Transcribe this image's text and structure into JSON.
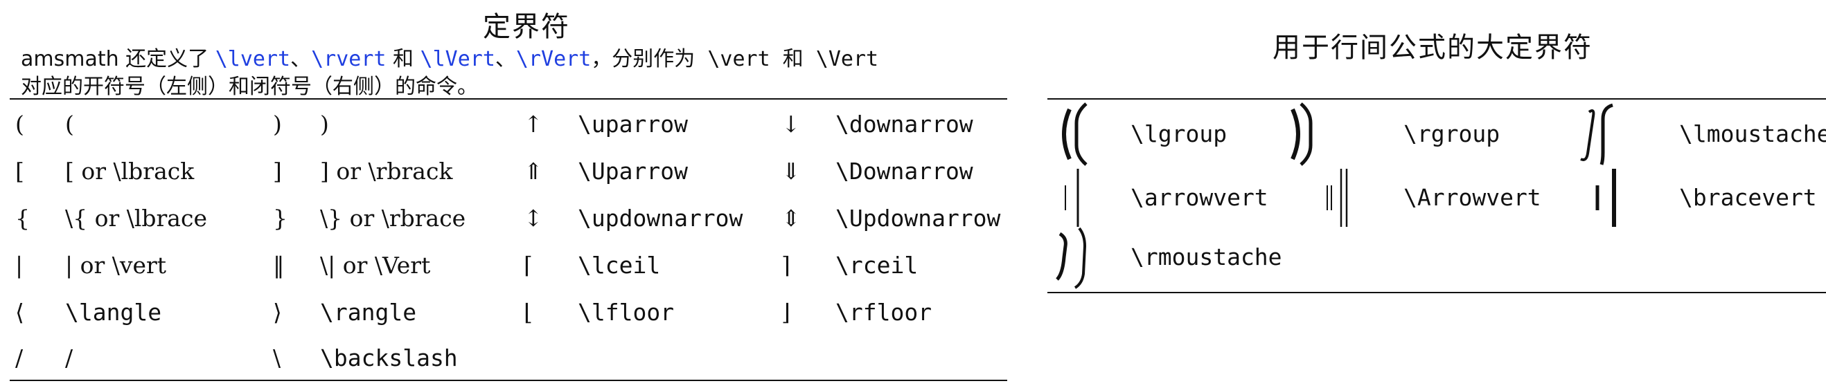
{
  "left": {
    "title": "定界符",
    "intro_line_1": {
      "pre": "amsmath 还定义了 ",
      "cmd_lvert": "\\lvert",
      "sep1": "、",
      "cmd_rvert": "\\rvert",
      "sep2": " 和 ",
      "cmd_lVert": "\\lVert",
      "sep3": "、",
      "cmd_rVert": "\\rVert",
      "post": "，分别作为 \\vert 和 \\Vert"
    },
    "intro_line_2": "对应的开符号（左侧）和闭符号（右侧）的命令。",
    "rows": [
      {
        "s1": "(",
        "c1": "(",
        "s2": ")",
        "c2": ")",
        "s3": "↑",
        "c3": "\\uparrow",
        "s4": "↓",
        "c4": "\\downarrow"
      },
      {
        "s1": "[",
        "c1": "[ or \\lbrack",
        "s2": "]",
        "c2": "] or \\rbrack",
        "s3": "⇑",
        "c3": "\\Uparrow",
        "s4": "⇓",
        "c4": "\\Downarrow"
      },
      {
        "s1": "{",
        "c1": "\\{ or \\lbrace",
        "s2": "}",
        "c2": "\\} or \\rbrace",
        "s3": "↕",
        "c3": "\\updownarrow",
        "s4": "⇕",
        "c4": "\\Updownarrow"
      },
      {
        "s1": "|",
        "c1": "| or \\vert",
        "s2": "‖",
        "c2": "\\| or \\Vert",
        "s3": "⌈",
        "c3": "\\lceil",
        "s4": "⌉",
        "c4": "\\rceil"
      },
      {
        "s1": "⟨",
        "c1": "\\langle",
        "s2": "⟩",
        "c2": "\\rangle",
        "s3": "⌊",
        "c3": "\\lfloor",
        "s4": "⌋",
        "c4": "\\rfloor"
      },
      {
        "s1": "/",
        "c1": "/",
        "s2": "\\",
        "c2": "\\backslash",
        "s3": "",
        "c3": "",
        "s4": "",
        "c4": ""
      }
    ]
  },
  "right": {
    "title": "用于行间公式的大定界符",
    "rows": [
      {
        "c1": "\\lgroup",
        "c2": "\\rgroup",
        "c3": "\\lmoustache"
      },
      {
        "c1": "\\arrowvert",
        "c2": "\\Arrowvert",
        "c3": "\\bracevert"
      },
      {
        "c1": "\\rmoustache"
      }
    ]
  }
}
